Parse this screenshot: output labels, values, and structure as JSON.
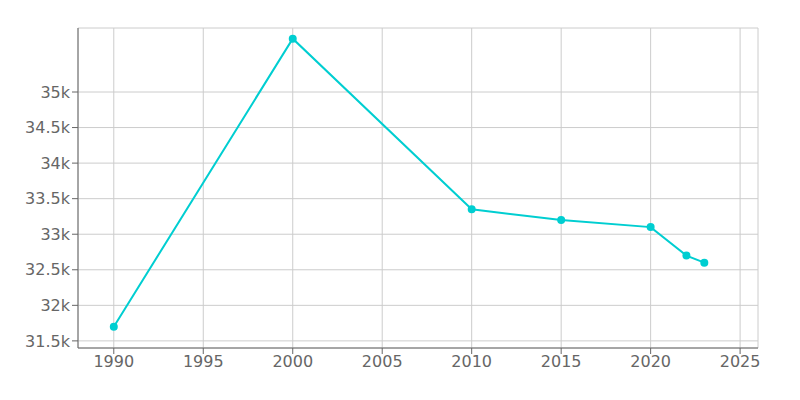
{
  "chart_data": {
    "type": "line",
    "x": [
      1990,
      2000,
      2010,
      2015,
      2020,
      2022,
      2023
    ],
    "values": [
      31700,
      35750,
      33350,
      33200,
      33100,
      32700,
      32600
    ],
    "color": "#00CED1",
    "marker": "circle",
    "xlim": [
      1988,
      2026
    ],
    "ylim": [
      31400,
      35900
    ],
    "xticks": [
      1990,
      1995,
      2000,
      2005,
      2010,
      2015,
      2020,
      2025
    ],
    "yticks": [
      {
        "value": 31500,
        "label": "31.5k"
      },
      {
        "value": 32000,
        "label": "32k"
      },
      {
        "value": 32500,
        "label": "32.5k"
      },
      {
        "value": 33000,
        "label": "33k"
      },
      {
        "value": 33500,
        "label": "33.5k"
      },
      {
        "value": 34000,
        "label": "34k"
      },
      {
        "value": 34500,
        "label": "34.5k"
      },
      {
        "value": 35000,
        "label": "35k"
      }
    ],
    "grid": true
  }
}
